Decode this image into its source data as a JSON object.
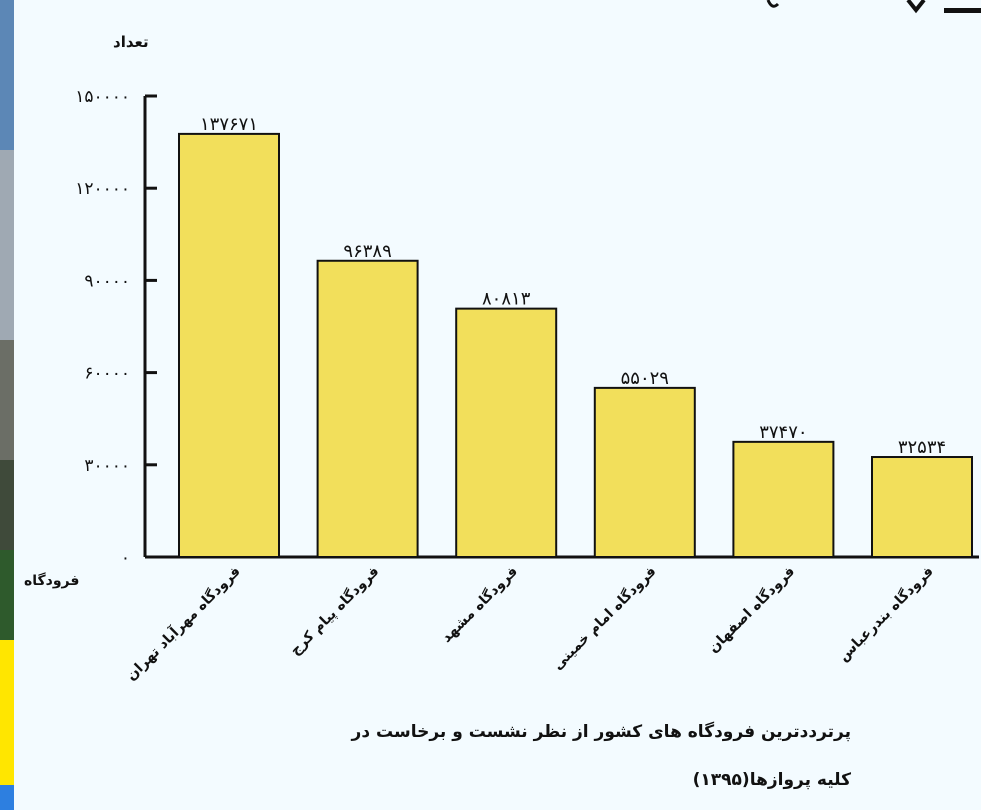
{
  "colors": {
    "bar_fill": "#f2df5b",
    "bar_stroke": "#111111",
    "axis": "#111111",
    "background": "#f3fbff"
  },
  "chart_data": {
    "type": "bar",
    "ylabel": "تعداد",
    "xlabel": "فرودگاه",
    "ylim": [
      0,
      150000
    ],
    "y_ticks": [
      {
        "value": 0,
        "label": "۰"
      },
      {
        "value": 30000,
        "label": "۳۰۰۰۰"
      },
      {
        "value": 60000,
        "label": "۶۰۰۰۰"
      },
      {
        "value": 90000,
        "label": "۹۰۰۰۰"
      },
      {
        "value": 120000,
        "label": "۱۲۰۰۰۰"
      },
      {
        "value": 150000,
        "label": "۱۵۰۰۰۰"
      }
    ],
    "categories": [
      "فرودگاه مهرآباد تهران",
      "فرودگاه پیام کرج",
      "فرودگاه مشهد",
      "فرودگاه امام خمینی",
      "فرودگاه اصفهان",
      "فرودگاه بندرعباس"
    ],
    "values": [
      137671,
      96389,
      80813,
      55029,
      37470,
      32534
    ],
    "value_labels": [
      "۱۳۷۶۷۱",
      "۹۶۳۸۹",
      "۸۰۸۱۳",
      "۵۵۰۲۹",
      "۳۷۴۷۰",
      "۳۲۵۳۴"
    ],
    "grid": false
  },
  "caption": {
    "line1": "پرترددترین فرودگاه های کشور از نظر نشست و برخاست در",
    "line2": "کلیه پروازها(۱۳۹۵)"
  }
}
